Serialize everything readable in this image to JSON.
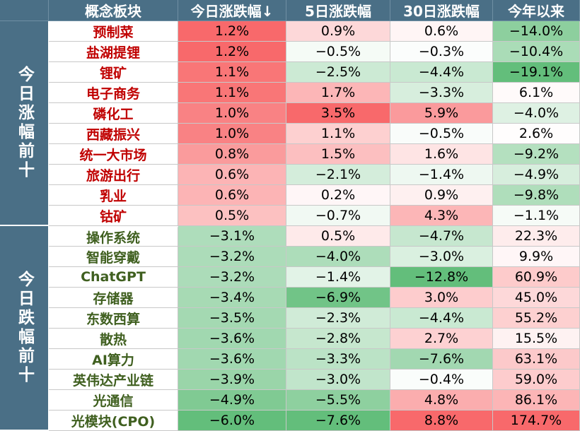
{
  "table": {
    "headers": [
      "概念板块",
      "今日涨跌幅↓",
      "5日涨跌幅",
      "30日涨跌幅",
      "今年以来"
    ],
    "groups": [
      {
        "label": "今日涨幅前十",
        "direction": "up",
        "rows": [
          {
            "name": "预制菜",
            "values": [
              "1.2%",
              "0.9%",
              "0.6%",
              "−14.0%"
            ]
          },
          {
            "name": "盐湖提锂",
            "values": [
              "1.2%",
              "−0.5%",
              "−0.3%",
              "−10.4%"
            ]
          },
          {
            "name": "锂矿",
            "values": [
              "1.1%",
              "−2.5%",
              "−4.4%",
              "−19.1%"
            ]
          },
          {
            "name": "电子商务",
            "values": [
              "1.1%",
              "1.7%",
              "−3.3%",
              "6.1%"
            ]
          },
          {
            "name": "磷化工",
            "values": [
              "1.0%",
              "3.5%",
              "5.9%",
              "−4.0%"
            ]
          },
          {
            "name": "西藏振兴",
            "values": [
              "1.0%",
              "1.1%",
              "−0.5%",
              "2.6%"
            ]
          },
          {
            "name": "统一大市场",
            "values": [
              "0.8%",
              "1.5%",
              "1.6%",
              "−9.2%"
            ]
          },
          {
            "name": "旅游出行",
            "values": [
              "0.6%",
              "−2.1%",
              "−1.4%",
              "−4.9%"
            ]
          },
          {
            "name": "乳业",
            "values": [
              "0.6%",
              "0.2%",
              "0.9%",
              "−9.8%"
            ]
          },
          {
            "name": "钴矿",
            "values": [
              "0.5%",
              "−0.7%",
              "4.3%",
              "−1.1%"
            ]
          }
        ]
      },
      {
        "label": "今日跌幅前十",
        "direction": "down",
        "rows": [
          {
            "name": "操作系统",
            "values": [
              "−3.1%",
              "0.5%",
              "−4.7%",
              "22.3%"
            ]
          },
          {
            "name": "智能穿戴",
            "values": [
              "−3.2%",
              "−4.0%",
              "−3.0%",
              "9.9%"
            ]
          },
          {
            "name": "ChatGPT",
            "values": [
              "−3.2%",
              "−1.4%",
              "−12.8%",
              "60.9%"
            ]
          },
          {
            "name": "存储器",
            "values": [
              "−3.4%",
              "−6.9%",
              "3.0%",
              "45.0%"
            ]
          },
          {
            "name": "东数西算",
            "values": [
              "−3.5%",
              "−2.3%",
              "−4.4%",
              "55.2%"
            ]
          },
          {
            "name": "散热",
            "values": [
              "−3.6%",
              "−2.8%",
              "2.7%",
              "15.5%"
            ]
          },
          {
            "name": "AI算力",
            "values": [
              "−3.6%",
              "−3.3%",
              "−7.6%",
              "63.1%"
            ]
          },
          {
            "name": "英伟达产业链",
            "values": [
              "−3.9%",
              "−3.0%",
              "−0.4%",
              "59.0%"
            ]
          },
          {
            "name": "光通信",
            "values": [
              "−4.9%",
              "−5.5%",
              "4.8%",
              "86.1%"
            ]
          },
          {
            "name": "光模块(CPO)",
            "values": [
              "−6.0%",
              "−7.6%",
              "8.8%",
              "174.7%"
            ]
          }
        ]
      }
    ]
  },
  "chart_data": {
    "type": "table",
    "columns": [
      "概念板块",
      "今日涨跌幅",
      "5日涨跌幅",
      "30日涨跌幅",
      "今年以来"
    ],
    "sorted_by": "今日涨跌幅",
    "sort_order": "descending",
    "unit": "%",
    "groups": [
      "今日涨幅前十",
      "今日跌幅前十"
    ],
    "rows": [
      {
        "group": "今日涨幅前十",
        "name": "预制菜",
        "today": 1.2,
        "d5": 0.9,
        "d30": 0.6,
        "ytd": -14.0
      },
      {
        "group": "今日涨幅前十",
        "name": "盐湖提锂",
        "today": 1.2,
        "d5": -0.5,
        "d30": -0.3,
        "ytd": -10.4
      },
      {
        "group": "今日涨幅前十",
        "name": "锂矿",
        "today": 1.1,
        "d5": -2.5,
        "d30": -4.4,
        "ytd": -19.1
      },
      {
        "group": "今日涨幅前十",
        "name": "电子商务",
        "today": 1.1,
        "d5": 1.7,
        "d30": -3.3,
        "ytd": 6.1
      },
      {
        "group": "今日涨幅前十",
        "name": "磷化工",
        "today": 1.0,
        "d5": 3.5,
        "d30": 5.9,
        "ytd": -4.0
      },
      {
        "group": "今日涨幅前十",
        "name": "西藏振兴",
        "today": 1.0,
        "d5": 1.1,
        "d30": -0.5,
        "ytd": 2.6
      },
      {
        "group": "今日涨幅前十",
        "name": "统一大市场",
        "today": 0.8,
        "d5": 1.5,
        "d30": 1.6,
        "ytd": -9.2
      },
      {
        "group": "今日涨幅前十",
        "name": "旅游出行",
        "today": 0.6,
        "d5": -2.1,
        "d30": -1.4,
        "ytd": -4.9
      },
      {
        "group": "今日涨幅前十",
        "name": "乳业",
        "today": 0.6,
        "d5": 0.2,
        "d30": 0.9,
        "ytd": -9.8
      },
      {
        "group": "今日涨幅前十",
        "name": "钴矿",
        "today": 0.5,
        "d5": -0.7,
        "d30": 4.3,
        "ytd": -1.1
      },
      {
        "group": "今日跌幅前十",
        "name": "操作系统",
        "today": -3.1,
        "d5": 0.5,
        "d30": -4.7,
        "ytd": 22.3
      },
      {
        "group": "今日跌幅前十",
        "name": "智能穿戴",
        "today": -3.2,
        "d5": -4.0,
        "d30": -3.0,
        "ytd": 9.9
      },
      {
        "group": "今日跌幅前十",
        "name": "ChatGPT",
        "today": -3.2,
        "d5": -1.4,
        "d30": -12.8,
        "ytd": 60.9
      },
      {
        "group": "今日跌幅前十",
        "name": "存储器",
        "today": -3.4,
        "d5": -6.9,
        "d30": 3.0,
        "ytd": 45.0
      },
      {
        "group": "今日跌幅前十",
        "name": "东数西算",
        "today": -3.5,
        "d5": -2.3,
        "d30": -4.4,
        "ytd": 55.2
      },
      {
        "group": "今日跌幅前十",
        "name": "散热",
        "today": -3.6,
        "d5": -2.8,
        "d30": 2.7,
        "ytd": 15.5
      },
      {
        "group": "今日跌幅前十",
        "name": "AI算力",
        "today": -3.6,
        "d5": -3.3,
        "d30": -7.6,
        "ytd": 63.1
      },
      {
        "group": "今日跌幅前十",
        "name": "英伟达产业链",
        "today": -3.9,
        "d5": -3.0,
        "d30": -0.4,
        "ytd": 59.0
      },
      {
        "group": "今日跌幅前十",
        "name": "光通信",
        "today": -4.9,
        "d5": -5.5,
        "d30": 4.8,
        "ytd": 86.1
      },
      {
        "group": "今日跌幅前十",
        "name": "光模块(CPO)",
        "today": -6.0,
        "d5": -7.6,
        "d30": 8.8,
        "ytd": 174.7
      }
    ],
    "colors": {
      "positive": "#f8696b",
      "negative": "#63be7b",
      "neutral": "#ffffff",
      "header_bg": "#4a6f86",
      "up_name_text": "#c00000",
      "down_name_text": "#3f5f1f"
    }
  }
}
